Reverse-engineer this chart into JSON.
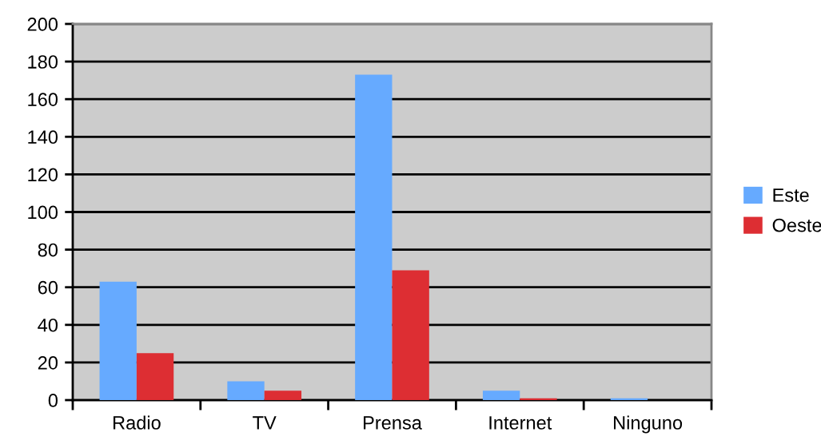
{
  "chart_data": {
    "type": "bar",
    "categories": [
      "Radio",
      "TV",
      "Prensa",
      "Internet",
      "Ninguno"
    ],
    "series": [
      {
        "name": "Este",
        "color": "#66aaff",
        "values": [
          63,
          10,
          173,
          5,
          1
        ]
      },
      {
        "name": "Oeste",
        "color": "#dd2e33",
        "values": [
          25,
          5,
          69,
          1,
          0
        ]
      }
    ],
    "ylim": [
      0,
      200
    ],
    "yticks": [
      0,
      20,
      40,
      60,
      80,
      100,
      120,
      140,
      160,
      180,
      200
    ],
    "grid": "y",
    "legend": "right"
  }
}
